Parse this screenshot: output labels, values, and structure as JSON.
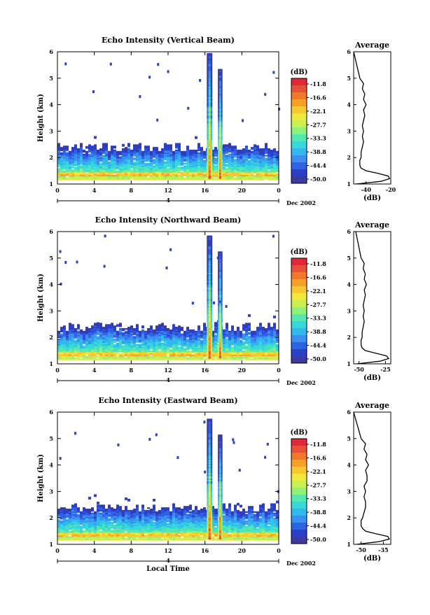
{
  "colors": {
    "scale": [
      "#3a3aa0",
      "#2b3fc8",
      "#2f63e6",
      "#3a8ff0",
      "#31b8ee",
      "#36d8dc",
      "#52e8b0",
      "#8ff07a",
      "#c8f050",
      "#f0e83c",
      "#f7c830",
      "#f6a028",
      "#f07828",
      "#e85038",
      "#e02838"
    ],
    "background": "#ffffff",
    "profile_line": "#000000"
  },
  "chart_data": [
    {
      "type": "heatmap",
      "title": "Echo Intensity (Vertical Beam)",
      "ylabel": "Height (km)",
      "ylim": [
        1,
        6
      ],
      "yticks": [
        "1",
        "2",
        "3",
        "4",
        "5",
        "6"
      ],
      "xlim": [
        0,
        24
      ],
      "xticks": [
        "0",
        "4",
        "8",
        "12",
        "16",
        "20",
        "0"
      ],
      "date_day": "4",
      "date_label": "Dec 2002",
      "colorbar_unit": "(dB)",
      "colorbar_ticks": [
        "-11.8",
        "-16.6",
        "-22.1",
        "-27.7",
        "-33.3",
        "-38.8",
        "-44.4",
        "-50.0"
      ],
      "profile": {
        "title": "Average",
        "xlabel": "(dB)",
        "xticks": [
          "-40",
          "-20"
        ],
        "xlim": [
          -50,
          -20
        ],
        "heights": [
          1.0,
          1.1,
          1.2,
          1.3,
          1.4,
          1.5,
          1.6,
          1.7,
          1.8,
          1.9,
          2.0,
          2.2,
          2.4,
          2.6,
          2.8,
          3.0,
          3.2,
          3.4,
          3.6,
          3.8,
          4.0,
          4.2,
          4.4,
          4.6,
          4.8,
          5.0,
          5.2,
          5.4,
          5.6,
          5.8,
          6.0
        ],
        "values": [
          -48,
          -28,
          -21,
          -22,
          -30,
          -40,
          -44,
          -45,
          -45,
          -45,
          -44,
          -44,
          -43,
          -42,
          -43,
          -42,
          -43,
          -42,
          -41,
          -42,
          -40,
          -42,
          -41,
          -43,
          -42,
          -45,
          -46,
          -47,
          -48,
          -49,
          -50
        ]
      }
    },
    {
      "type": "heatmap",
      "title": "Echo Intensity (Northward Beam)",
      "ylabel": "Height (km)",
      "ylim": [
        1,
        6
      ],
      "yticks": [
        "1",
        "2",
        "3",
        "4",
        "5",
        "6"
      ],
      "xlim": [
        0,
        24
      ],
      "xticks": [
        "0",
        "4",
        "8",
        "12",
        "16",
        "20",
        "0"
      ],
      "date_day": "4",
      "date_label": "Dec 2002",
      "colorbar_unit": "(dB)",
      "colorbar_ticks": [
        "-11.8",
        "-16.6",
        "-22.1",
        "-27.7",
        "-33.3",
        "-38.8",
        "-44.4",
        "-50.0"
      ],
      "profile": {
        "title": "Average",
        "xlabel": "(dB)",
        "xticks": [
          "-50",
          "-25"
        ],
        "xlim": [
          -55,
          -20
        ],
        "heights": [
          1.0,
          1.1,
          1.2,
          1.3,
          1.4,
          1.5,
          1.6,
          1.7,
          1.8,
          1.9,
          2.0,
          2.2,
          2.4,
          2.6,
          2.8,
          3.0,
          3.2,
          3.4,
          3.6,
          3.8,
          4.0,
          4.2,
          4.4,
          4.6,
          4.8,
          5.0,
          5.2,
          5.4,
          5.6,
          5.8,
          6.0
        ],
        "values": [
          -52,
          -30,
          -22,
          -24,
          -34,
          -44,
          -47,
          -48,
          -48,
          -48,
          -47,
          -47,
          -46,
          -45,
          -46,
          -45,
          -46,
          -45,
          -44,
          -45,
          -43,
          -45,
          -44,
          -46,
          -45,
          -48,
          -49,
          -50,
          -51,
          -52,
          -53
        ]
      }
    },
    {
      "type": "heatmap",
      "title": "Echo Intensity (Eastward Beam)",
      "ylabel": "Height (km)",
      "ylim": [
        1,
        6
      ],
      "yticks": [
        "1",
        "2",
        "3",
        "4",
        "5",
        "6"
      ],
      "xlim": [
        0,
        24
      ],
      "xticks": [
        "0",
        "4",
        "8",
        "12",
        "16",
        "20",
        "0"
      ],
      "xlabel": "Local Time",
      "date_day": "4",
      "date_label": "Dec 2002",
      "colorbar_unit": "(dB)",
      "colorbar_ticks": [
        "-11.8",
        "-16.6",
        "-22.1",
        "-27.7",
        "-33.3",
        "-38.8",
        "-44.4",
        "-50.0"
      ],
      "profile": {
        "title": "Average",
        "xlabel": "(dB)",
        "xticks": [
          "-50",
          "-35"
        ],
        "xlim": [
          -55,
          -30
        ],
        "heights": [
          1.0,
          1.1,
          1.2,
          1.3,
          1.4,
          1.5,
          1.6,
          1.7,
          1.8,
          1.9,
          2.0,
          2.2,
          2.4,
          2.6,
          2.8,
          3.0,
          3.2,
          3.4,
          3.6,
          3.8,
          4.0,
          4.2,
          4.4,
          4.6,
          4.8,
          5.0,
          5.2,
          5.4,
          5.6,
          5.8,
          6.0
        ],
        "values": [
          -53,
          -38,
          -31,
          -32,
          -40,
          -47,
          -49,
          -50,
          -50,
          -50,
          -49,
          -48,
          -47,
          -47,
          -48,
          -47,
          -48,
          -46,
          -46,
          -47,
          -45,
          -47,
          -46,
          -48,
          -47,
          -50,
          -51,
          -52,
          -53,
          -54,
          -55
        ]
      }
    }
  ]
}
